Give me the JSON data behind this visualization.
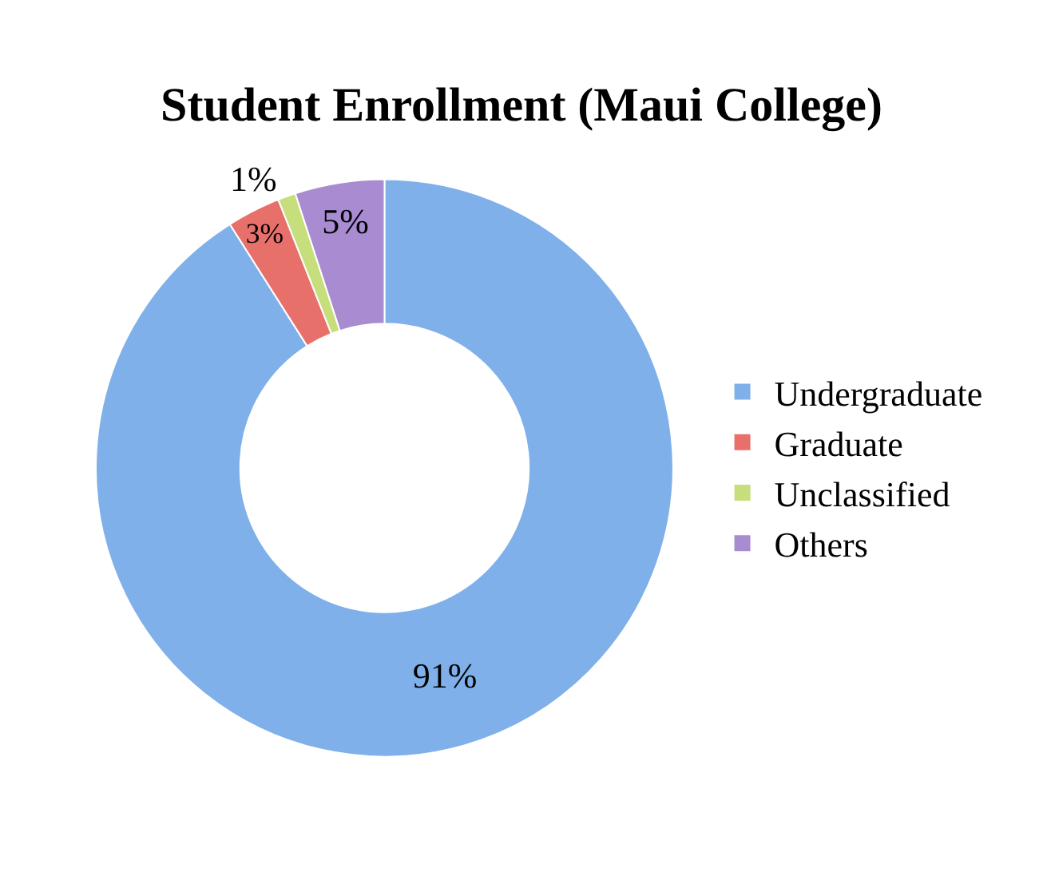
{
  "chart_data": {
    "type": "donut",
    "title": "Student Enrollment (Maui College)",
    "categories": [
      "Undergraduate",
      "Graduate",
      "Unclassified",
      "Others"
    ],
    "values": [
      91,
      3,
      1,
      5
    ],
    "colors": [
      "#7fb0ea",
      "#e8706a",
      "#c6df7c",
      "#a88bd0"
    ],
    "value_labels": [
      "91%",
      "3%",
      "1%",
      "5%"
    ],
    "legend": "right"
  }
}
